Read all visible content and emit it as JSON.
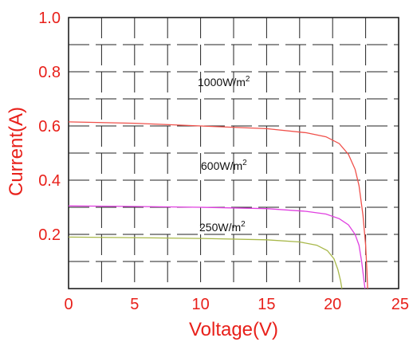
{
  "chart_data": {
    "type": "line",
    "title": "",
    "xlabel": "Voltage(V)",
    "ylabel": "Current(A)",
    "xlim": [
      0,
      25
    ],
    "ylim": [
      0,
      1.0
    ],
    "x_ticks": [
      "0",
      "5",
      "10",
      "15",
      "20",
      "25"
    ],
    "y_ticks": [
      "1.0",
      "0.8",
      "0.6",
      "0.4",
      "0.2"
    ],
    "grid": true,
    "series": [
      {
        "name": "1000W/m2",
        "label_base": "1000W/m",
        "label_sup": "2",
        "color": "#f0504a",
        "x": [
          0,
          5,
          10,
          15,
          18,
          19.5,
          20.5,
          21.2,
          21.7,
          22.0,
          22.3,
          22.5,
          22.6,
          22.65
        ],
        "y": [
          0.615,
          0.61,
          0.6,
          0.59,
          0.575,
          0.56,
          0.535,
          0.495,
          0.44,
          0.38,
          0.27,
          0.16,
          0.06,
          0.0
        ]
      },
      {
        "name": "600W/m2",
        "label_base": "600W/m",
        "label_sup": "2",
        "color": "#e040e0",
        "x": [
          0,
          5,
          10,
          15,
          18,
          19.5,
          20.5,
          21.2,
          21.7,
          22.0,
          22.2,
          22.35,
          22.45
        ],
        "y": [
          0.305,
          0.303,
          0.3,
          0.295,
          0.285,
          0.275,
          0.258,
          0.235,
          0.2,
          0.16,
          0.1,
          0.04,
          0.0
        ]
      },
      {
        "name": "250W/m2",
        "label_base": "250W/m",
        "label_sup": "2",
        "color": "#a8b84a",
        "x": [
          0,
          5,
          10,
          15,
          17.5,
          18.8,
          19.6,
          20.1,
          20.4,
          20.6,
          20.7
        ],
        "y": [
          0.19,
          0.188,
          0.185,
          0.18,
          0.172,
          0.16,
          0.14,
          0.11,
          0.07,
          0.03,
          0.0
        ]
      }
    ]
  }
}
